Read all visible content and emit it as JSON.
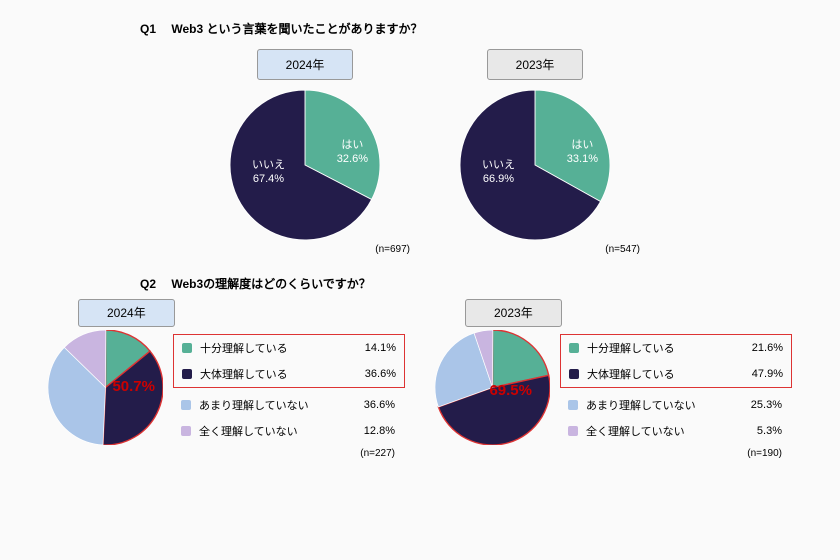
{
  "colors": {
    "yes": "#56b096",
    "no": "#231c4a",
    "understand_full": "#56b096",
    "understand_mostly": "#231c4a",
    "understand_little": "#aac5e8",
    "understand_none": "#c9b5e0",
    "highlight_border": "#dd3333",
    "year_2024_bg": "#d6e4f5",
    "year_2023_bg": "#e8e8e8"
  },
  "q1": {
    "num": "Q1",
    "text": "Web3 という言葉を聞いたことがありますか？",
    "yes_label": "はい",
    "no_label": "いいえ",
    "charts": [
      {
        "year": "2024年",
        "yes_pct": 32.6,
        "no_pct": 67.4,
        "yes_disp": "32.6%",
        "no_disp": "67.4%",
        "n": "(n=697)",
        "tag_class": "blue"
      },
      {
        "year": "2023年",
        "yes_pct": 33.1,
        "no_pct": 66.9,
        "yes_disp": "33.1%",
        "no_disp": "66.9%",
        "n": "(n=547)",
        "tag_class": "gray"
      }
    ]
  },
  "q2": {
    "num": "Q2",
    "text": "Web3の理解度はどのくらいですか？",
    "labels": {
      "full": "十分理解している",
      "mostly": "大体理解している",
      "little": "あまり理解していない",
      "none": "全く理解していない"
    },
    "charts": [
      {
        "year": "2024年",
        "tag_class": "blue",
        "full": 14.1,
        "mostly": 36.6,
        "little": 36.6,
        "none": 12.8,
        "full_disp": "14.1%",
        "mostly_disp": "36.6%",
        "little_disp": "36.6%",
        "none_disp": "12.8%",
        "sum": "50.7%",
        "n": "(n=227)"
      },
      {
        "year": "2023年",
        "tag_class": "gray",
        "full": 21.6,
        "mostly": 47.9,
        "little": 25.3,
        "none": 5.3,
        "full_disp": "21.6%",
        "mostly_disp": "47.9%",
        "little_disp": "25.3%",
        "none_disp": "5.3%",
        "sum": "69.5%",
        "n": "(n=190)"
      }
    ]
  }
}
